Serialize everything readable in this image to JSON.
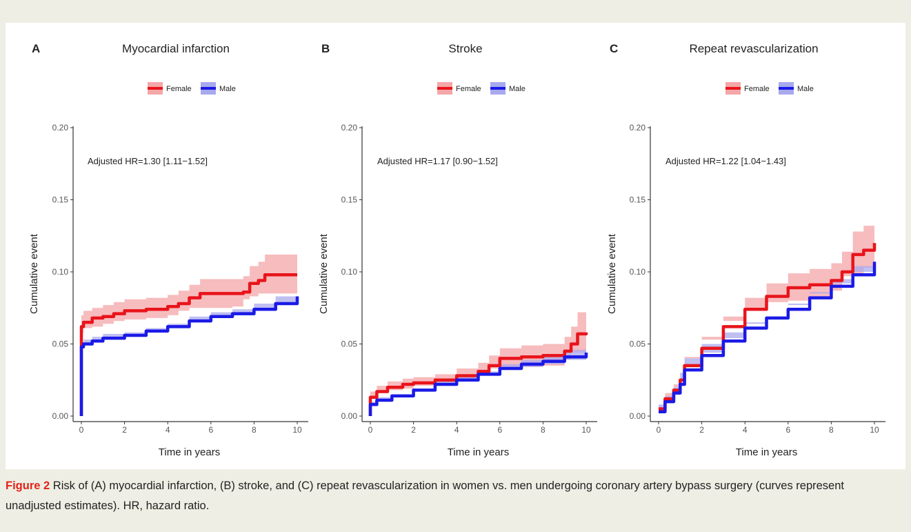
{
  "figure": {
    "caption_label": "Figure 2",
    "caption_text": "Risk of (A) myocardial infarction, (B) stroke, and (C) repeat revascularization in women vs. men undergoing coronary artery bypass surgery (curves represent unadjusted estimates). HR, hazard ratio."
  },
  "colors": {
    "female": "#e8141b",
    "male": "#1a1ae6",
    "female_band": "#f4a6a8",
    "male_band": "#a9a9ee"
  },
  "chart_data": [
    {
      "type": "line",
      "panel": "A",
      "title": "Myocardial infarction",
      "xlabel": "Time in years",
      "ylabel": "Cumulative event",
      "annotation": "Adjusted HR=1.30 [1.11−1.52]",
      "xlim": [
        0,
        10
      ],
      "ylim": [
        0,
        0.2
      ],
      "xticks": [
        0,
        2,
        4,
        6,
        8,
        10
      ],
      "yticks": [
        "0.00",
        "0.05",
        "0.10",
        "0.15",
        "0.20"
      ],
      "legend": [
        "Female",
        "Male"
      ],
      "legend_position": "top",
      "series": [
        {
          "name": "Female",
          "x": [
            0,
            0,
            0.1,
            0.5,
            1,
            1.5,
            2,
            3,
            4,
            4.5,
            5,
            5.5,
            6,
            7,
            7.5,
            7.8,
            8.2,
            8.5,
            9,
            10
          ],
          "y": [
            0,
            0.062,
            0.065,
            0.068,
            0.069,
            0.071,
            0.073,
            0.074,
            0.076,
            0.078,
            0.082,
            0.085,
            0.085,
            0.085,
            0.086,
            0.092,
            0.094,
            0.098,
            0.098,
            0.098
          ],
          "lower": [
            0,
            0.055,
            0.058,
            0.061,
            0.062,
            0.064,
            0.066,
            0.067,
            0.068,
            0.07,
            0.073,
            0.075,
            0.075,
            0.075,
            0.076,
            0.081,
            0.083,
            0.085,
            0.085,
            0.085
          ],
          "upper": [
            0,
            0.07,
            0.073,
            0.075,
            0.077,
            0.079,
            0.081,
            0.082,
            0.084,
            0.087,
            0.091,
            0.095,
            0.095,
            0.095,
            0.097,
            0.104,
            0.107,
            0.112,
            0.112,
            0.112
          ]
        },
        {
          "name": "Male",
          "x": [
            0,
            0,
            0.1,
            0.5,
            1,
            2,
            3,
            4,
            5,
            6,
            7,
            8,
            9,
            10
          ],
          "y": [
            0,
            0.048,
            0.05,
            0.052,
            0.054,
            0.056,
            0.059,
            0.062,
            0.066,
            0.069,
            0.071,
            0.074,
            0.078,
            0.083
          ],
          "lower": [
            0,
            0.045,
            0.047,
            0.05,
            0.052,
            0.054,
            0.057,
            0.06,
            0.063,
            0.066,
            0.068,
            0.07,
            0.073,
            0.077
          ],
          "upper": [
            0,
            0.051,
            0.053,
            0.055,
            0.057,
            0.058,
            0.061,
            0.064,
            0.069,
            0.072,
            0.074,
            0.078,
            0.083,
            0.089
          ]
        }
      ]
    },
    {
      "type": "line",
      "panel": "B",
      "title": "Stroke",
      "xlabel": "Time in years",
      "ylabel": "Cumulative event",
      "annotation": "Adjusted HR=1.17 [0.90−1.52]",
      "xlim": [
        0,
        10
      ],
      "ylim": [
        0,
        0.2
      ],
      "xticks": [
        0,
        2,
        4,
        6,
        8,
        10
      ],
      "yticks": [
        "0.00",
        "0.05",
        "0.10",
        "0.15",
        "0.20"
      ],
      "legend": [
        "Female",
        "Male"
      ],
      "legend_position": "top",
      "series": [
        {
          "name": "Female",
          "x": [
            0,
            0,
            0.3,
            0.8,
            1.5,
            2,
            3,
            4,
            5,
            5.5,
            6,
            7,
            8,
            9,
            9.3,
            9.6,
            10
          ],
          "y": [
            0,
            0.013,
            0.017,
            0.02,
            0.022,
            0.023,
            0.025,
            0.028,
            0.031,
            0.035,
            0.04,
            0.041,
            0.042,
            0.045,
            0.05,
            0.057,
            0.058
          ],
          "lower": [
            0,
            0.009,
            0.013,
            0.016,
            0.018,
            0.019,
            0.021,
            0.023,
            0.025,
            0.029,
            0.033,
            0.033,
            0.034,
            0.035,
            0.039,
            0.044,
            0.044
          ],
          "upper": [
            0,
            0.017,
            0.021,
            0.024,
            0.026,
            0.027,
            0.029,
            0.033,
            0.037,
            0.042,
            0.047,
            0.049,
            0.05,
            0.055,
            0.062,
            0.072,
            0.072
          ]
        },
        {
          "name": "Male",
          "x": [
            0,
            0,
            0.3,
            1,
            2,
            3,
            4,
            5,
            6,
            7,
            8,
            9,
            10
          ],
          "y": [
            0,
            0.008,
            0.011,
            0.014,
            0.018,
            0.022,
            0.025,
            0.029,
            0.033,
            0.036,
            0.038,
            0.041,
            0.044
          ],
          "lower": [
            0,
            0.006,
            0.009,
            0.012,
            0.016,
            0.02,
            0.023,
            0.026,
            0.03,
            0.032,
            0.034,
            0.036,
            0.039
          ],
          "upper": [
            0,
            0.01,
            0.013,
            0.016,
            0.02,
            0.024,
            0.027,
            0.031,
            0.036,
            0.039,
            0.042,
            0.046,
            0.049
          ]
        }
      ]
    },
    {
      "type": "line",
      "panel": "C",
      "title": "Repeat revascularization",
      "xlabel": "Time in years",
      "ylabel": "Cumulative event",
      "annotation": "Adjusted HR=1.22 [1.04−1.43]",
      "xlim": [
        0,
        10
      ],
      "ylim": [
        0,
        0.2
      ],
      "xticks": [
        0,
        2,
        4,
        6,
        8,
        10
      ],
      "yticks": [
        "0.00",
        "0.05",
        "0.10",
        "0.15",
        "0.20"
      ],
      "legend": [
        "Female",
        "Male"
      ],
      "legend_position": "top",
      "series": [
        {
          "name": "Female",
          "x": [
            0,
            0.3,
            0.7,
            1,
            1.2,
            2,
            3,
            4,
            5,
            6,
            7,
            8,
            8.5,
            9,
            9.5,
            10
          ],
          "y": [
            0.005,
            0.012,
            0.018,
            0.025,
            0.035,
            0.047,
            0.062,
            0.074,
            0.083,
            0.089,
            0.091,
            0.094,
            0.1,
            0.112,
            0.115,
            0.12
          ],
          "lower": [
            0.002,
            0.008,
            0.014,
            0.02,
            0.03,
            0.041,
            0.055,
            0.066,
            0.074,
            0.079,
            0.08,
            0.082,
            0.087,
            0.097,
            0.099,
            0.103
          ],
          "upper": [
            0.008,
            0.016,
            0.022,
            0.03,
            0.04,
            0.053,
            0.069,
            0.082,
            0.092,
            0.099,
            0.102,
            0.106,
            0.114,
            0.128,
            0.132,
            0.138
          ]
        },
        {
          "name": "Male",
          "x": [
            0,
            0.3,
            0.7,
            1,
            1.2,
            2,
            3,
            4,
            5,
            6,
            7,
            8,
            9,
            10
          ],
          "y": [
            0.003,
            0.01,
            0.016,
            0.022,
            0.032,
            0.042,
            0.052,
            0.061,
            0.068,
            0.074,
            0.082,
            0.09,
            0.098,
            0.107
          ],
          "lower": [
            0.001,
            0.008,
            0.014,
            0.02,
            0.03,
            0.04,
            0.05,
            0.058,
            0.065,
            0.071,
            0.078,
            0.085,
            0.092,
            0.1
          ],
          "upper": [
            0.005,
            0.012,
            0.018,
            0.024,
            0.034,
            0.044,
            0.054,
            0.064,
            0.071,
            0.077,
            0.086,
            0.095,
            0.104,
            0.114
          ]
        }
      ]
    }
  ]
}
